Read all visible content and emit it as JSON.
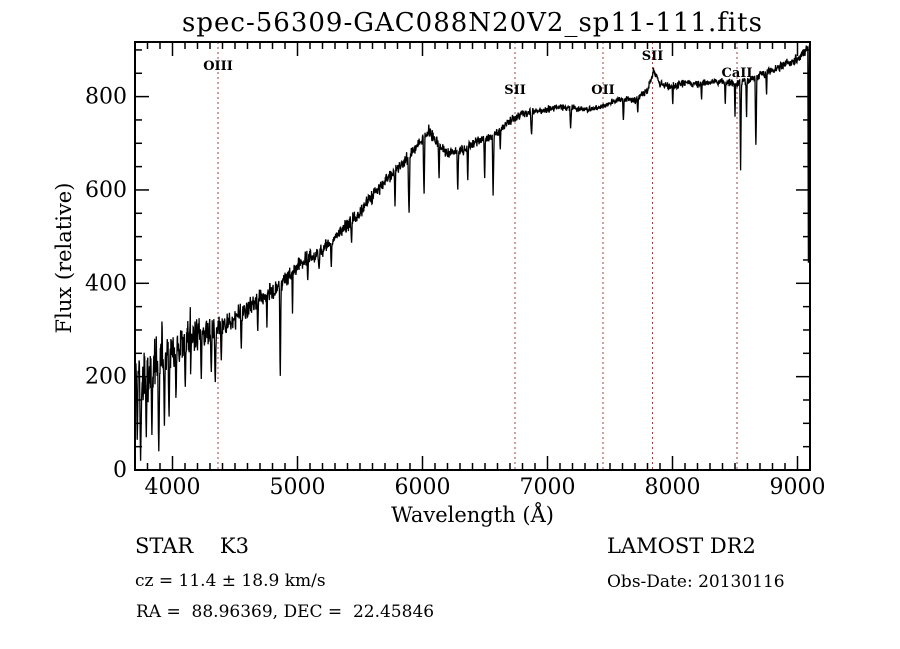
{
  "title": "spec-56309-GAC088N20V2_sp11-111.fits",
  "colors": {
    "background": "#ffffff",
    "spectrum": "#000000",
    "frame": "#000000",
    "marker_line": "#9e4242",
    "text": "#000000"
  },
  "annotations": {
    "star_class": "STAR    K3",
    "cz": "cz = 11.4 ± 18.9 km/s",
    "ra_dec": "RA =  88.96369, DEC =  22.45846",
    "survey": "LAMOST DR2",
    "obs_date": "Obs-Date: 20130116"
  },
  "chart_data": {
    "type": "line",
    "title": "spec-56309-GAC088N20V2_sp11-111.fits",
    "xlabel": "Wavelength (Å)",
    "ylabel": "Flux (relative)",
    "series_name": "flux",
    "x_range": [
      3700,
      9100
    ],
    "y_range": [
      0,
      917
    ],
    "x_ticks": [
      4000,
      5000,
      6000,
      7000,
      8000,
      9000
    ],
    "y_ticks": [
      0,
      200,
      400,
      600,
      800
    ],
    "x_minor_step": 100,
    "y_minor_step": 50,
    "grid": false,
    "legend": false,
    "markers": [
      {
        "label": "OIII",
        "wavelength": 4364,
        "label_baseline_y": 70
      },
      {
        "label": "SII",
        "wavelength": 6740,
        "label_baseline_y": 94
      },
      {
        "label": "OII",
        "wavelength": 7444,
        "label_baseline_y": 94
      },
      {
        "label": "SII",
        "wavelength": 7840,
        "label_baseline_y": 60
      },
      {
        "label": "CaII",
        "wavelength": 8516,
        "label_baseline_y": 77
      }
    ],
    "continuum_points": [
      [
        3700,
        175
      ],
      [
        3800,
        205
      ],
      [
        3900,
        235
      ],
      [
        4000,
        255
      ],
      [
        4100,
        278
      ],
      [
        4200,
        292
      ],
      [
        4300,
        300
      ],
      [
        4400,
        308
      ],
      [
        4500,
        325
      ],
      [
        4600,
        348
      ],
      [
        4700,
        368
      ],
      [
        4800,
        385
      ],
      [
        4900,
        405
      ],
      [
        5000,
        438
      ],
      [
        5100,
        455
      ],
      [
        5200,
        472
      ],
      [
        5300,
        498
      ],
      [
        5400,
        525
      ],
      [
        5500,
        555
      ],
      [
        5600,
        585
      ],
      [
        5700,
        618
      ],
      [
        5800,
        648
      ],
      [
        5900,
        672
      ],
      [
        5950,
        695
      ],
      [
        6050,
        722
      ],
      [
        6120,
        705
      ],
      [
        6200,
        678
      ],
      [
        6300,
        682
      ],
      [
        6400,
        700
      ],
      [
        6500,
        708
      ],
      [
        6600,
        722
      ],
      [
        6700,
        748
      ],
      [
        6800,
        762
      ],
      [
        6900,
        768
      ],
      [
        7000,
        773
      ],
      [
        7100,
        777
      ],
      [
        7200,
        776
      ],
      [
        7300,
        772
      ],
      [
        7400,
        775
      ],
      [
        7500,
        786
      ],
      [
        7600,
        796
      ],
      [
        7700,
        792
      ],
      [
        7800,
        815
      ],
      [
        7850,
        856
      ],
      [
        7900,
        828
      ],
      [
        8000,
        822
      ],
      [
        8100,
        830
      ],
      [
        8200,
        827
      ],
      [
        8300,
        832
      ],
      [
        8400,
        831
      ],
      [
        8500,
        828
      ],
      [
        8600,
        833
      ],
      [
        8700,
        845
      ],
      [
        8800,
        856
      ],
      [
        8900,
        868
      ],
      [
        9000,
        882
      ],
      [
        9050,
        895
      ],
      [
        9100,
        902
      ]
    ],
    "noise_amplitude": [
      [
        3700,
        78
      ],
      [
        3850,
        65
      ],
      [
        4000,
        52
      ],
      [
        4200,
        40
      ],
      [
        4400,
        30
      ],
      [
        4700,
        25
      ],
      [
        5000,
        21
      ],
      [
        5400,
        18
      ],
      [
        5800,
        16
      ],
      [
        6200,
        15
      ],
      [
        6600,
        12
      ],
      [
        7000,
        9
      ],
      [
        7400,
        8
      ],
      [
        7800,
        10
      ],
      [
        8200,
        9
      ],
      [
        8600,
        11
      ],
      [
        9000,
        13
      ],
      [
        9100,
        14
      ]
    ],
    "absorption_features": [
      [
        3718,
        60,
        6
      ],
      [
        3745,
        20,
        8
      ],
      [
        3790,
        70,
        6
      ],
      [
        3835,
        75,
        7
      ],
      [
        3890,
        40,
        8
      ],
      [
        3935,
        95,
        7
      ],
      [
        3972,
        110,
        7
      ],
      [
        4028,
        150,
        6
      ],
      [
        4102,
        175,
        7
      ],
      [
        4145,
        205,
        6
      ],
      [
        4230,
        195,
        6
      ],
      [
        4310,
        210,
        7
      ],
      [
        4342,
        185,
        8
      ],
      [
        4390,
        235,
        6
      ],
      [
        4550,
        260,
        6
      ],
      [
        4682,
        295,
        6
      ],
      [
        4755,
        305,
        5
      ],
      [
        4862,
        195,
        7
      ],
      [
        4960,
        335,
        5
      ],
      [
        5082,
        405,
        6
      ],
      [
        5172,
        430,
        8
      ],
      [
        5270,
        435,
        6
      ],
      [
        5432,
        485,
        6
      ],
      [
        5780,
        565,
        6
      ],
      [
        5892,
        548,
        8
      ],
      [
        6012,
        588,
        7
      ],
      [
        6132,
        622,
        6
      ],
      [
        6282,
        598,
        7
      ],
      [
        6362,
        618,
        6
      ],
      [
        6497,
        622,
        6
      ],
      [
        6565,
        588,
        7
      ],
      [
        6622,
        685,
        5
      ],
      [
        6872,
        718,
        8
      ],
      [
        7185,
        732,
        7
      ],
      [
        7607,
        748,
        6
      ],
      [
        7722,
        765,
        6
      ],
      [
        8002,
        782,
        5
      ],
      [
        8232,
        792,
        5
      ],
      [
        8422,
        782,
        5
      ],
      [
        8500,
        757,
        5
      ],
      [
        8545,
        642,
        6
      ],
      [
        8592,
        752,
        5
      ],
      [
        8667,
        692,
        7
      ],
      [
        8752,
        802,
        5
      ],
      [
        9088,
        420,
        5
      ]
    ],
    "emission_spikes": [
      [
        3916,
        345,
        4
      ],
      [
        4142,
        362,
        3
      ],
      [
        5062,
        472,
        3
      ],
      [
        6050,
        740,
        3
      ]
    ],
    "noise_seed": 20130116
  }
}
